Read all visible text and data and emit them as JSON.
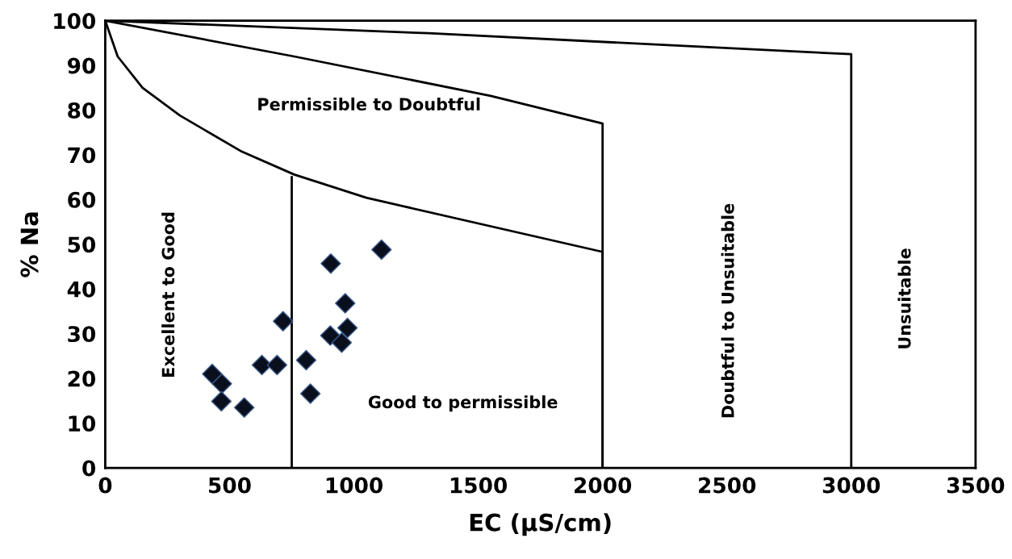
{
  "chart_data": {
    "type": "scatter",
    "xlabel": "EC (µS/cm)",
    "ylabel": "% Na",
    "xlim": [
      0,
      3500
    ],
    "xticks": [
      0,
      500,
      1000,
      1500,
      2000,
      2500,
      3000,
      3500
    ],
    "ylim": [
      0,
      100
    ],
    "yticks": [
      0,
      10,
      20,
      30,
      40,
      50,
      60,
      70,
      80,
      90,
      100
    ],
    "grid": false,
    "legend": false,
    "marker": "diamond",
    "series": [
      {
        "color": "#0a0f1e",
        "x": [
          430,
          469,
          467,
          559,
          630,
          691,
          715,
          808,
          825,
          907,
          1111,
          965,
          974,
          905,
          951
        ],
        "values": [
          21.0,
          18.8,
          14.9,
          13.5,
          23.0,
          23.0,
          32.8,
          24.1,
          16.6,
          45.7,
          48.8,
          36.8,
          31.3,
          29.6,
          28.0
        ]
      },
      {
        "type": "line",
        "color": "#000000",
        "marker": "none",
        "x": [
          0,
          1300,
          3000,
          3000
        ],
        "values": [
          100,
          97.2,
          92.5,
          0
        ]
      },
      {
        "type": "line",
        "color": "#000000",
        "marker": "none",
        "x": [
          0,
          760,
          1550,
          2000,
          2000
        ],
        "values": [
          100,
          92.0,
          83.2,
          77,
          0
        ]
      },
      {
        "type": "line",
        "color": "#000000",
        "marker": "none",
        "x": [
          0,
          50,
          150,
          300,
          550,
          760,
          1050,
          2000,
          2000
        ],
        "values": [
          100,
          92,
          85,
          78.8,
          70.7,
          65.6,
          60.4,
          48.3,
          0
        ]
      },
      {
        "type": "line",
        "color": "#000000",
        "marker": "none",
        "x": [
          750,
          750
        ],
        "values": [
          0,
          65
        ]
      }
    ],
    "annotations": [
      "Permissible to Doubtful",
      "Excellent to Good",
      "Good to permissible",
      "Doubtful to Unsuitable",
      "Unsuitable"
    ]
  }
}
